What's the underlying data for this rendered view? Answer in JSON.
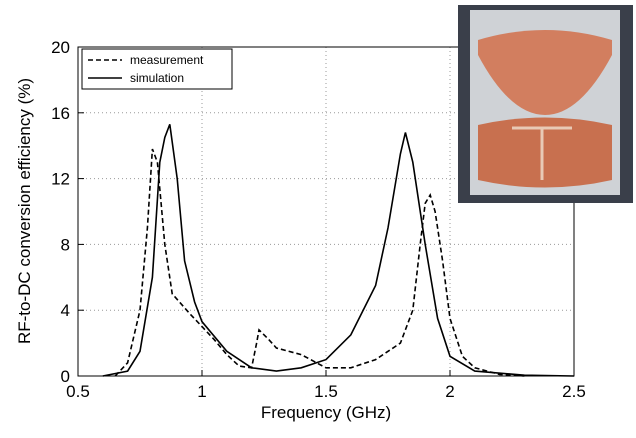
{
  "chart_data": {
    "type": "line",
    "xlabel": "Frequency (GHz)",
    "ylabel": "RF-to-DC conversion efficiency (%)",
    "xlim": [
      0.5,
      2.5
    ],
    "xticks": [
      0.5,
      1,
      1.5,
      2,
      2.5
    ],
    "ylim": [
      0,
      20
    ],
    "yticks": [
      0,
      4,
      8,
      12,
      16,
      20
    ],
    "grid": true,
    "legend": "upper left",
    "series": [
      {
        "name": "measurement",
        "color": "#000000",
        "dash": true,
        "x": [
          0.65,
          0.7,
          0.75,
          0.78,
          0.8,
          0.82,
          0.85,
          0.88,
          0.95,
          1.0,
          1.05,
          1.1,
          1.15,
          1.2,
          1.22,
          1.23,
          1.27,
          1.3,
          1.4,
          1.45,
          1.5,
          1.6,
          1.7,
          1.8,
          1.85,
          1.88,
          1.9,
          1.92,
          1.94,
          1.97,
          2.0,
          2.05,
          2.1,
          2.2,
          2.3
        ],
        "values": [
          0,
          0.8,
          4,
          9,
          13.8,
          13,
          8,
          5,
          3.8,
          3,
          2.2,
          1.3,
          0.6,
          0.5,
          2,
          2.8,
          2.2,
          1.7,
          1.3,
          0.9,
          0.5,
          0.5,
          1,
          2,
          4,
          8,
          10.5,
          11,
          10,
          7,
          3.5,
          1.2,
          0.5,
          0.1,
          0
        ]
      },
      {
        "name": "simulation",
        "color": "#000000",
        "dash": false,
        "x": [
          0.6,
          0.7,
          0.75,
          0.8,
          0.83,
          0.85,
          0.87,
          0.9,
          0.93,
          0.97,
          1.0,
          1.1,
          1.2,
          1.3,
          1.4,
          1.5,
          1.6,
          1.7,
          1.75,
          1.8,
          1.82,
          1.85,
          1.9,
          1.95,
          2.0,
          2.1,
          2.3,
          2.5
        ],
        "values": [
          0,
          0.3,
          1.5,
          6,
          13,
          14.5,
          15.3,
          12,
          7,
          4.5,
          3.3,
          1.5,
          0.5,
          0.3,
          0.5,
          1,
          2.5,
          5.5,
          9,
          13.5,
          14.8,
          13,
          8,
          3.5,
          1.2,
          0.3,
          0.05,
          0
        ]
      }
    ]
  }
}
